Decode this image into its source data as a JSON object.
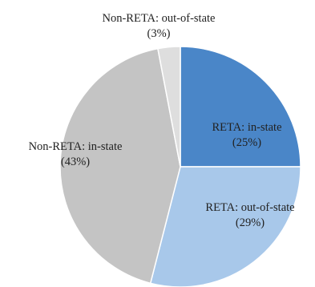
{
  "chart_data": {
    "type": "pie",
    "slices": [
      {
        "label": "RETA: in-state",
        "value": 25,
        "value_label": "(25%)",
        "color": "#4a86c8"
      },
      {
        "label": "RETA: out-of-state",
        "value": 29,
        "value_label": "(29%)",
        "color": "#a8c8ea"
      },
      {
        "label": "Non-RETA: in-state",
        "value": 43,
        "value_label": "(43%)",
        "color": "#c4c4c4"
      },
      {
        "label": "Non-RETA: out-of-state",
        "value": 3,
        "value_label": "(3%)",
        "color": "#dedede"
      }
    ],
    "start_angle": "12 o'clock",
    "direction": "clockwise"
  }
}
